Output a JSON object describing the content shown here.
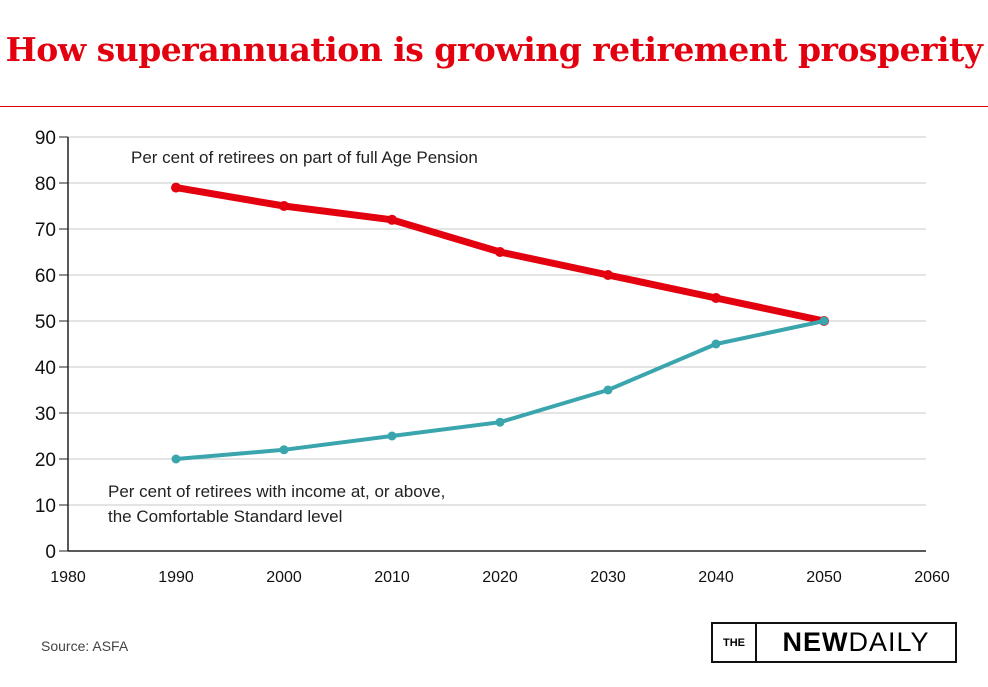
{
  "chart_data": {
    "type": "line",
    "title": "How superannuation is growing retirement prosperity",
    "x": [
      1990,
      2000,
      2010,
      2020,
      2030,
      2040,
      2050
    ],
    "xlim": [
      1980,
      2060
    ],
    "ylim": [
      0,
      90
    ],
    "xticks": [
      1980,
      1990,
      2000,
      2010,
      2020,
      2030,
      2040,
      2050,
      2060
    ],
    "yticks": [
      0,
      10,
      20,
      30,
      40,
      50,
      60,
      70,
      80,
      90
    ],
    "grid": true,
    "series": [
      {
        "name": "Per cent of retirees on part of full Age Pension",
        "color": "#e3000f",
        "values": [
          79,
          75,
          72,
          65,
          60,
          55,
          50
        ]
      },
      {
        "name": "Per cent of retirees with income at, or above, the Comfortable Standard level",
        "label_lines": [
          "Per cent of retirees with income at, or above,",
          "the Comfortable Standard level"
        ],
        "color": "#3aa5ad",
        "values": [
          20,
          22,
          25,
          28,
          35,
          45,
          50
        ]
      }
    ]
  },
  "source": "Source: ASFA",
  "logo": {
    "the": "THE",
    "new": "NEW",
    "daily": "DAILY"
  }
}
